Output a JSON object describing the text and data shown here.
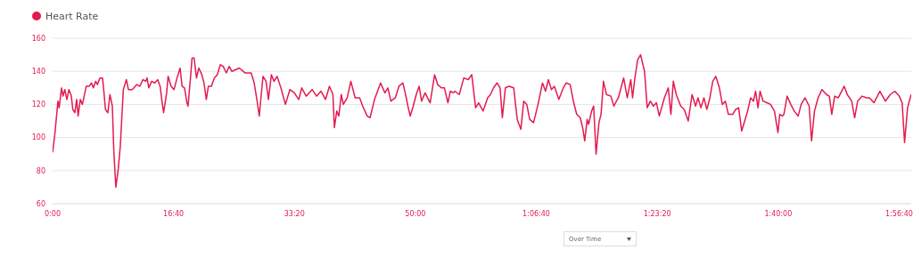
{
  "chart_data": {
    "type": "line",
    "legend": "top left",
    "grid": "y",
    "xlim": [
      0,
      7100
    ],
    "ylim": [
      60,
      160
    ],
    "yticks": [
      60,
      80,
      100,
      120,
      140,
      160
    ],
    "xticks": [
      {
        "value": 0,
        "label": "0:00"
      },
      {
        "value": 1000,
        "label": "16:40"
      },
      {
        "value": 2000,
        "label": "33:20"
      },
      {
        "value": 3000,
        "label": "50:00"
      },
      {
        "value": 4000,
        "label": "1:06:40"
      },
      {
        "value": 5000,
        "label": "1:23:20"
      },
      {
        "value": 6000,
        "label": "1:40:00"
      },
      {
        "value": 7000,
        "label": "1:56:40"
      }
    ],
    "annotations": [
      "Over Time"
    ],
    "series": [
      {
        "name": "Heart Rate",
        "color": "#e31b4f",
        "x": [
          0,
          20,
          44,
          54,
          74,
          86,
          101,
          118,
          135,
          155,
          167,
          184,
          199,
          211,
          229,
          246,
          261,
          278,
          303,
          322,
          337,
          356,
          371,
          391,
          413,
          425,
          437,
          457,
          474,
          494,
          506,
          523,
          543,
          560,
          573,
          585,
          610,
          627,
          659,
          696,
          721,
          746,
          770,
          782,
          795,
          819,
          844,
          869,
          889,
          906,
          918,
          943,
          955,
          980,
          1004,
          1029,
          1054,
          1071,
          1091,
          1111,
          1120,
          1140,
          1153,
          1170,
          1190,
          1209,
          1234,
          1252,
          1271,
          1288,
          1313,
          1337,
          1362,
          1387,
          1411,
          1436,
          1460,
          1482,
          1544,
          1593,
          1642,
          1667,
          1691,
          1709,
          1723,
          1740,
          1765,
          1785,
          1809,
          1831,
          1856,
          1888,
          1925,
          1962,
          1999,
          2035,
          2060,
          2097,
          2146,
          2183,
          2220,
          2257,
          2289,
          2318,
          2330,
          2350,
          2367,
          2387,
          2404,
          2436,
          2466,
          2502,
          2539,
          2564,
          2601,
          2625,
          2662,
          2712,
          2748,
          2773,
          2797,
          2834,
          2864,
          2896,
          2916,
          2938,
          2957,
          2982,
          3007,
          3031,
          3051,
          3080,
          3122,
          3159,
          3184,
          3215,
          3240,
          3269,
          3289,
          3314,
          3326,
          3363,
          3400,
          3437,
          3466,
          3498,
          3523,
          3560,
          3597,
          3621,
          3646,
          3675,
          3700,
          3719,
          3744,
          3774,
          3813,
          3842,
          3872,
          3896,
          3921,
          3945,
          3977,
          4014,
          4051,
          4076,
          4100,
          4125,
          4149,
          4186,
          4223,
          4248,
          4280,
          4309,
          4334,
          4363,
          4383,
          4400,
          4420,
          4432,
          4457,
          4474,
          4494,
          4518,
          4535,
          4555,
          4580,
          4617,
          4641,
          4678,
          4722,
          4752,
          4781,
          4796,
          4813,
          4838,
          4862,
          4895,
          4917,
          4943,
          4968,
          4993,
          5017,
          5059,
          5091,
          5113,
          5133,
          5157,
          5194,
          5223,
          5256,
          5288,
          5317,
          5337,
          5361,
          5386,
          5410,
          5435,
          5459,
          5484,
          5514,
          5538,
          5563,
          5588,
          5624,
          5649,
          5673,
          5698,
          5723,
          5747,
          5772,
          5796,
          5813,
          5833,
          5850,
          5875,
          5907,
          5937,
          5969,
          5998,
          6013,
          6035,
          6047,
          6074,
          6104,
          6133,
          6165,
          6190,
          6222,
          6256,
          6276,
          6300,
          6330,
          6362,
          6399,
          6423,
          6443,
          6467,
          6497,
          6546,
          6571,
          6608,
          6632,
          6657,
          6694,
          6731,
          6755,
          6792,
          6841,
          6886,
          6927,
          6964,
          7001,
          7025,
          7045,
          7070,
          7099
        ],
        "values": [
          91,
          103,
          122,
          118,
          130,
          125,
          129,
          123,
          129,
          125,
          117,
          115,
          123,
          113,
          123,
          120,
          125,
          131,
          131,
          133,
          130,
          134,
          132,
          136,
          136,
          127,
          117,
          115,
          126,
          119,
          92,
          70,
          81,
          95,
          113,
          129,
          135,
          129,
          129,
          132,
          131,
          135,
          134,
          136,
          130,
          134,
          133,
          135,
          131,
          121,
          115,
          127,
          137,
          131,
          129,
          136,
          142,
          131,
          130,
          121,
          119,
          136,
          148,
          148,
          136,
          142,
          138,
          133,
          123,
          131,
          131,
          136,
          138,
          144,
          143,
          139,
          143,
          140,
          142,
          139,
          139,
          133,
          122,
          113,
          124,
          137,
          134,
          123,
          138,
          134,
          137,
          130,
          120,
          129,
          127,
          123,
          130,
          125,
          129,
          125,
          128,
          123,
          131,
          126,
          106,
          116,
          113,
          126,
          120,
          124,
          134,
          124,
          124,
          119,
          113,
          112,
          123,
          133,
          127,
          130,
          122,
          124,
          131,
          133,
          127,
          119,
          113,
          119,
          126,
          131,
          122,
          127,
          121,
          138,
          132,
          130,
          130,
          121,
          128,
          127,
          128,
          126,
          136,
          135,
          138,
          118,
          121,
          116,
          124,
          126,
          130,
          133,
          130,
          112,
          130,
          131,
          130,
          111,
          105,
          122,
          120,
          111,
          109,
          120,
          133,
          128,
          135,
          129,
          131,
          123,
          130,
          133,
          132,
          121,
          114,
          112,
          106,
          98,
          111,
          108,
          116,
          119,
          90,
          109,
          114,
          134,
          126,
          125,
          119,
          124,
          136,
          124,
          135,
          124,
          135,
          147,
          150,
          140,
          118,
          122,
          119,
          121,
          113,
          124,
          130,
          114,
          134,
          126,
          119,
          117,
          110,
          126,
          119,
          124,
          118,
          124,
          117,
          124,
          134,
          137,
          130,
          120,
          122,
          114,
          114,
          117,
          118,
          104,
          110,
          116,
          124,
          122,
          128,
          118,
          128,
          122,
          121,
          120,
          116,
          103,
          114,
          113,
          114,
          125,
          120,
          116,
          113,
          120,
          124,
          119,
          98,
          116,
          124,
          129,
          126,
          125,
          114,
          125,
          124,
          131,
          126,
          122,
          112,
          122,
          125,
          124,
          124,
          121,
          128,
          122,
          126,
          128,
          125,
          121,
          97,
          118,
          126
        ]
      }
    ]
  }
}
